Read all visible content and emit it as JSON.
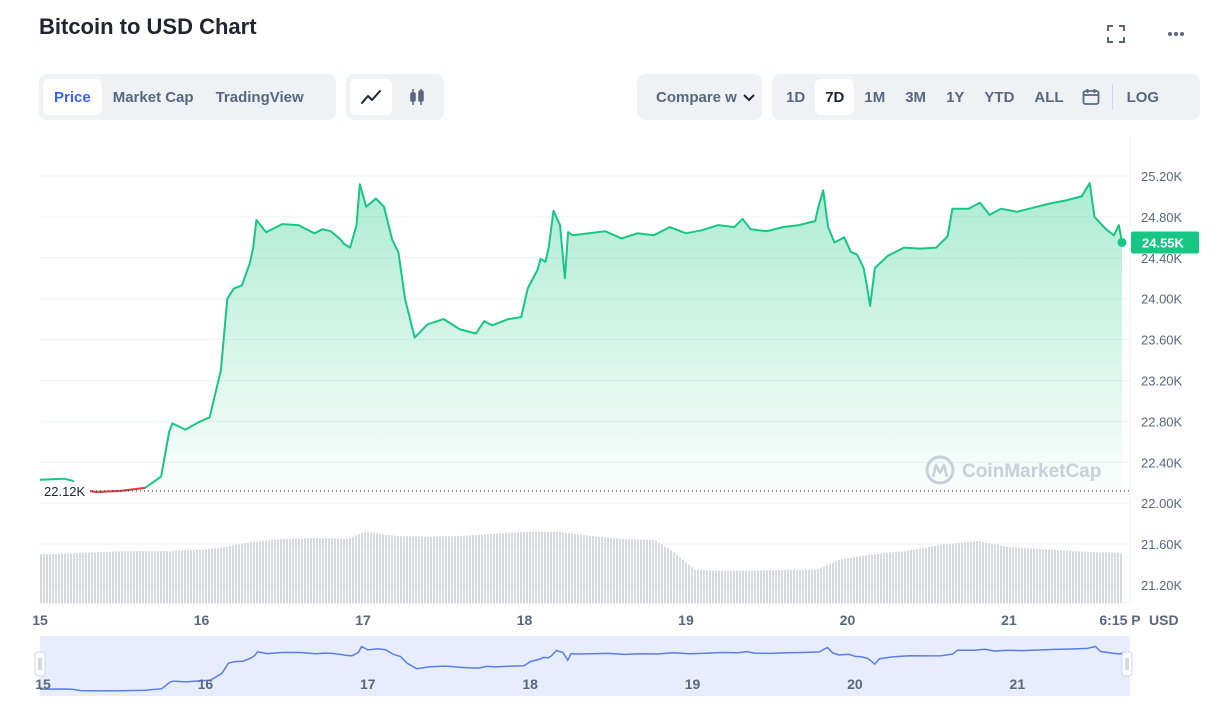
{
  "header": {
    "title": "Bitcoin to USD Chart"
  },
  "icons": {
    "fullscreen": "fullscreen-icon",
    "more": "more-icon",
    "line": "line-chart-icon",
    "candle": "candlestick-icon",
    "calendar": "calendar-icon",
    "chevron": "chevron-down-icon",
    "logo": "coinmarketcap-logo"
  },
  "tabs": {
    "price": "Price",
    "market_cap": "Market Cap",
    "tradingview": "TradingView"
  },
  "compare": {
    "label": "Compare w"
  },
  "ranges": {
    "d1": "1D",
    "d7": "7D",
    "m1": "1M",
    "m3": "3M",
    "y1": "1Y",
    "ytd": "YTD",
    "all": "ALL",
    "log": "LOG"
  },
  "colors": {
    "accent": "#3861fb",
    "up": "#16c784",
    "down": "#ea3943",
    "navigator_line": "#5b7ee5",
    "navigator_bg": "#e7edfd"
  },
  "watermark": "CoinMarketCap",
  "chart_data": {
    "type": "area",
    "x_unit": "day",
    "ylim": [
      21000,
      25400
    ],
    "y_ticks": [
      "25.20K",
      "24.80K",
      "24.40K",
      "24.00K",
      "23.60K",
      "23.20K",
      "22.80K",
      "22.40K",
      "22.00K",
      "21.60K",
      "21.20K"
    ],
    "y_tick_values": [
      25200,
      24800,
      24400,
      24000,
      23600,
      23200,
      22800,
      22400,
      22000,
      21600,
      21200
    ],
    "x_ticks": [
      "15",
      "16",
      "17",
      "18",
      "19",
      "20",
      "21",
      "6:15 P"
    ],
    "x_tick_values": [
      14.8,
      15.8,
      16.8,
      17.8,
      18.8,
      19.8,
      20.8,
      21.5
    ],
    "x_label": "USD",
    "open_price": 22120,
    "open_label": "22.12K",
    "current_price": 24550,
    "current_label": "24.55K",
    "grid": true,
    "series": [
      {
        "values": [
          [
            14.8,
            22230
          ],
          [
            14.95,
            22240
          ],
          [
            15.0,
            22220
          ],
          [
            15.05,
            22130
          ],
          [
            15.15,
            22110
          ],
          [
            15.3,
            22120
          ],
          [
            15.45,
            22150
          ],
          [
            15.55,
            22260
          ],
          [
            15.6,
            22700
          ],
          [
            15.62,
            22780
          ],
          [
            15.7,
            22720
          ],
          [
            15.78,
            22790
          ],
          [
            15.85,
            22840
          ],
          [
            15.92,
            23300
          ],
          [
            15.96,
            24000
          ],
          [
            16.0,
            24100
          ],
          [
            16.05,
            24130
          ],
          [
            16.1,
            24350
          ],
          [
            16.12,
            24500
          ],
          [
            16.14,
            24770
          ],
          [
            16.2,
            24650
          ],
          [
            16.3,
            24730
          ],
          [
            16.4,
            24720
          ],
          [
            16.5,
            24640
          ],
          [
            16.55,
            24680
          ],
          [
            16.6,
            24660
          ],
          [
            16.66,
            24580
          ],
          [
            16.68,
            24540
          ],
          [
            16.72,
            24500
          ],
          [
            16.76,
            24720
          ],
          [
            16.78,
            25120
          ],
          [
            16.82,
            24900
          ],
          [
            16.88,
            24980
          ],
          [
            16.93,
            24900
          ],
          [
            16.98,
            24580
          ],
          [
            17.02,
            24450
          ],
          [
            17.06,
            24000
          ],
          [
            17.12,
            23620
          ],
          [
            17.2,
            23750
          ],
          [
            17.3,
            23800
          ],
          [
            17.4,
            23700
          ],
          [
            17.5,
            23660
          ],
          [
            17.55,
            23780
          ],
          [
            17.6,
            23740
          ],
          [
            17.7,
            23800
          ],
          [
            17.78,
            23820
          ],
          [
            17.82,
            24100
          ],
          [
            17.88,
            24280
          ],
          [
            17.9,
            24390
          ],
          [
            17.93,
            24360
          ],
          [
            17.95,
            24500
          ],
          [
            17.98,
            24860
          ],
          [
            18.02,
            24720
          ],
          [
            18.05,
            24200
          ],
          [
            18.07,
            24650
          ],
          [
            18.1,
            24620
          ],
          [
            18.2,
            24640
          ],
          [
            18.3,
            24660
          ],
          [
            18.4,
            24590
          ],
          [
            18.5,
            24640
          ],
          [
            18.6,
            24620
          ],
          [
            18.7,
            24700
          ],
          [
            18.8,
            24640
          ],
          [
            18.9,
            24670
          ],
          [
            19.0,
            24720
          ],
          [
            19.1,
            24700
          ],
          [
            19.15,
            24780
          ],
          [
            19.2,
            24680
          ],
          [
            19.3,
            24660
          ],
          [
            19.4,
            24700
          ],
          [
            19.5,
            24720
          ],
          [
            19.6,
            24760
          ],
          [
            19.62,
            24900
          ],
          [
            19.65,
            25060
          ],
          [
            19.68,
            24700
          ],
          [
            19.72,
            24550
          ],
          [
            19.78,
            24600
          ],
          [
            19.82,
            24460
          ],
          [
            19.86,
            24430
          ],
          [
            19.9,
            24300
          ],
          [
            19.92,
            24130
          ],
          [
            19.94,
            23930
          ],
          [
            19.97,
            24300
          ],
          [
            20.05,
            24420
          ],
          [
            20.15,
            24500
          ],
          [
            20.25,
            24490
          ],
          [
            20.35,
            24500
          ],
          [
            20.42,
            24610
          ],
          [
            20.45,
            24880
          ],
          [
            20.55,
            24880
          ],
          [
            20.62,
            24940
          ],
          [
            20.68,
            24820
          ],
          [
            20.75,
            24880
          ],
          [
            20.85,
            24850
          ],
          [
            20.95,
            24890
          ],
          [
            21.05,
            24930
          ],
          [
            21.15,
            24960
          ],
          [
            21.25,
            25000
          ],
          [
            21.3,
            25130
          ],
          [
            21.33,
            24800
          ],
          [
            21.4,
            24680
          ],
          [
            21.45,
            24620
          ],
          [
            21.48,
            24720
          ],
          [
            21.5,
            24550
          ]
        ]
      },
      {
        "name": "volume",
        "values": [
          [
            14.8,
            21500
          ],
          [
            15.0,
            21510
          ],
          [
            15.3,
            21530
          ],
          [
            15.6,
            21530
          ],
          [
            15.9,
            21560
          ],
          [
            16.1,
            21620
          ],
          [
            16.3,
            21650
          ],
          [
            16.5,
            21660
          ],
          [
            16.7,
            21650
          ],
          [
            16.8,
            21720
          ],
          [
            17.0,
            21680
          ],
          [
            17.2,
            21670
          ],
          [
            17.4,
            21680
          ],
          [
            17.6,
            21700
          ],
          [
            17.8,
            21720
          ],
          [
            18.0,
            21720
          ],
          [
            18.2,
            21680
          ],
          [
            18.4,
            21650
          ],
          [
            18.6,
            21640
          ],
          [
            18.7,
            21540
          ],
          [
            18.85,
            21350
          ],
          [
            19.0,
            21340
          ],
          [
            19.2,
            21340
          ],
          [
            19.45,
            21350
          ],
          [
            19.6,
            21350
          ],
          [
            19.75,
            21450
          ],
          [
            19.95,
            21500
          ],
          [
            20.15,
            21530
          ],
          [
            20.4,
            21600
          ],
          [
            20.6,
            21630
          ],
          [
            20.8,
            21570
          ],
          [
            21.0,
            21550
          ],
          [
            21.2,
            21530
          ],
          [
            21.5,
            21510
          ]
        ]
      }
    ]
  }
}
